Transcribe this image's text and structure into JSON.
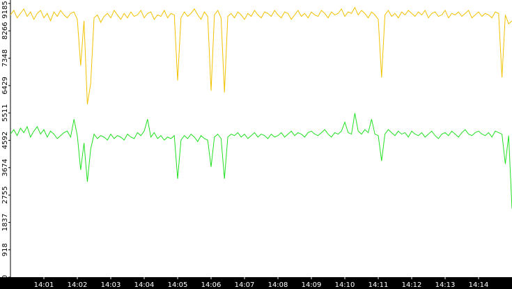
{
  "chart_data": {
    "type": "line",
    "categories": [
      null,
      null,
      null,
      null,
      null,
      null,
      null,
      null,
      null,
      null,
      "14:01",
      null,
      null,
      null,
      null,
      null,
      null,
      null,
      null,
      null,
      "14:02",
      null,
      null,
      null,
      null,
      null,
      null,
      null,
      null,
      null,
      "14:03",
      null,
      null,
      null,
      null,
      null,
      null,
      null,
      null,
      null,
      "14:04",
      null,
      null,
      null,
      null,
      null,
      null,
      null,
      null,
      null,
      "14:05",
      null,
      null,
      null,
      null,
      null,
      null,
      null,
      null,
      null,
      "14:06",
      null,
      null,
      null,
      null,
      null,
      null,
      null,
      null,
      null,
      "14:07",
      null,
      null,
      null,
      null,
      null,
      null,
      null,
      null,
      null,
      "14:08",
      null,
      null,
      null,
      null,
      null,
      null,
      null,
      null,
      null,
      "14:09",
      null,
      null,
      null,
      null,
      null,
      null,
      null,
      null,
      null,
      "14:10",
      null,
      null,
      null,
      null,
      null,
      null,
      null,
      null,
      null,
      "14:11",
      null,
      null,
      null,
      null,
      null,
      null,
      null,
      null,
      null,
      "14:12",
      null,
      null,
      null,
      null,
      null,
      null,
      null,
      null,
      null,
      "14:13",
      null,
      null,
      null,
      null,
      null,
      null,
      null,
      null,
      null,
      "14:14",
      null,
      null,
      null,
      null,
      null,
      null,
      null,
      null,
      null,
      null
    ],
    "series": [
      {
        "color": "#f2c200",
        "values": [
          8800,
          8950,
          8700,
          8850,
          9000,
          8750,
          8900,
          8650,
          8850,
          8950,
          8700,
          8850,
          8600,
          8900,
          8750,
          8950,
          8800,
          8700,
          8850,
          8900,
          8650,
          7100,
          8600,
          5800,
          6500,
          8700,
          8800,
          8550,
          8750,
          8850,
          8700,
          8950,
          8800,
          8650,
          8850,
          8700,
          8900,
          8750,
          8800,
          8950,
          8700,
          8850,
          8900,
          8650,
          8800,
          8750,
          8950,
          8700,
          8850,
          8800,
          6600,
          8700,
          8900,
          8750,
          8850,
          9000,
          8800,
          8650,
          8900,
          8750,
          6250,
          8800,
          8950,
          8700,
          6200,
          8750,
          8850,
          8700,
          8900,
          8800,
          8650,
          8850,
          8750,
          8950,
          8800,
          8700,
          8900,
          8850,
          8750,
          8950,
          8800,
          8700,
          8900,
          8850,
          8650,
          8800,
          8950,
          8750,
          8850,
          8700,
          8900,
          8800,
          8750,
          8950,
          8850,
          8700,
          8900,
          8800,
          8850,
          9000,
          8750,
          8900,
          8850,
          9050,
          8800,
          8950,
          8850,
          8700,
          8900,
          8800,
          8650,
          6700,
          8800,
          8950,
          8750,
          8850,
          8700,
          8900,
          8800,
          8950,
          8850,
          8750,
          8900,
          8800,
          8950,
          8700,
          8850,
          8900,
          8750,
          8800,
          8950,
          8700,
          8850,
          8800,
          8900,
          8750,
          8850,
          8950,
          8700,
          8800,
          8900,
          8750,
          8850,
          8800,
          8700,
          8900,
          8850,
          6700,
          8800,
          8500,
          8600
        ]
      },
      {
        "color": "#22e022",
        "values": [
          4800,
          4950,
          4750,
          5000,
          4850,
          5050,
          4700,
          4900,
          5050,
          4800,
          4950,
          4700,
          4900,
          4800,
          4650,
          4750,
          4850,
          4900,
          4700,
          5300,
          4750,
          3600,
          4500,
          3200,
          4300,
          4800,
          4650,
          4750,
          4700,
          4600,
          4800,
          4650,
          4750,
          4700,
          4600,
          4800,
          4700,
          4650,
          4850,
          4750,
          4900,
          5300,
          4700,
          4850,
          4650,
          4750,
          4600,
          4700,
          4650,
          4750,
          3300,
          4600,
          4750,
          4650,
          4800,
          4700,
          4550,
          4750,
          4650,
          4600,
          3700,
          4700,
          4800,
          4650,
          3300,
          4700,
          4800,
          4750,
          4850,
          4700,
          4800,
          4650,
          4750,
          4850,
          4700,
          4800,
          4750,
          4650,
          4800,
          4700,
          4750,
          4850,
          4700,
          4800,
          4900,
          4750,
          4850,
          4800,
          4700,
          4850,
          4900,
          4800,
          4750,
          4850,
          4950,
          4800,
          4700,
          4850,
          4800,
          4900,
          5200,
          4850,
          4800,
          5500,
          4900,
          4800,
          4950,
          4850,
          5300,
          4800,
          4750,
          3900,
          4800,
          4950,
          4850,
          4750,
          4900,
          4800,
          4850,
          4700,
          4900,
          4800,
          4750,
          4850,
          4700,
          4800,
          4900,
          4750,
          4650,
          4800,
          4850,
          4750,
          4900,
          4800,
          4700,
          4850,
          4950,
          4800,
          4750,
          4850,
          4900,
          4800,
          4750,
          4850,
          4700,
          4900,
          4850,
          4800,
          3800,
          4750,
          2300
        ]
      }
    ],
    "ylim": [
      0,
      9300
    ],
    "yticks": [
      0,
      918,
      1837,
      2755,
      3674,
      4592,
      5511,
      6429,
      7348,
      8266,
      9185
    ]
  }
}
